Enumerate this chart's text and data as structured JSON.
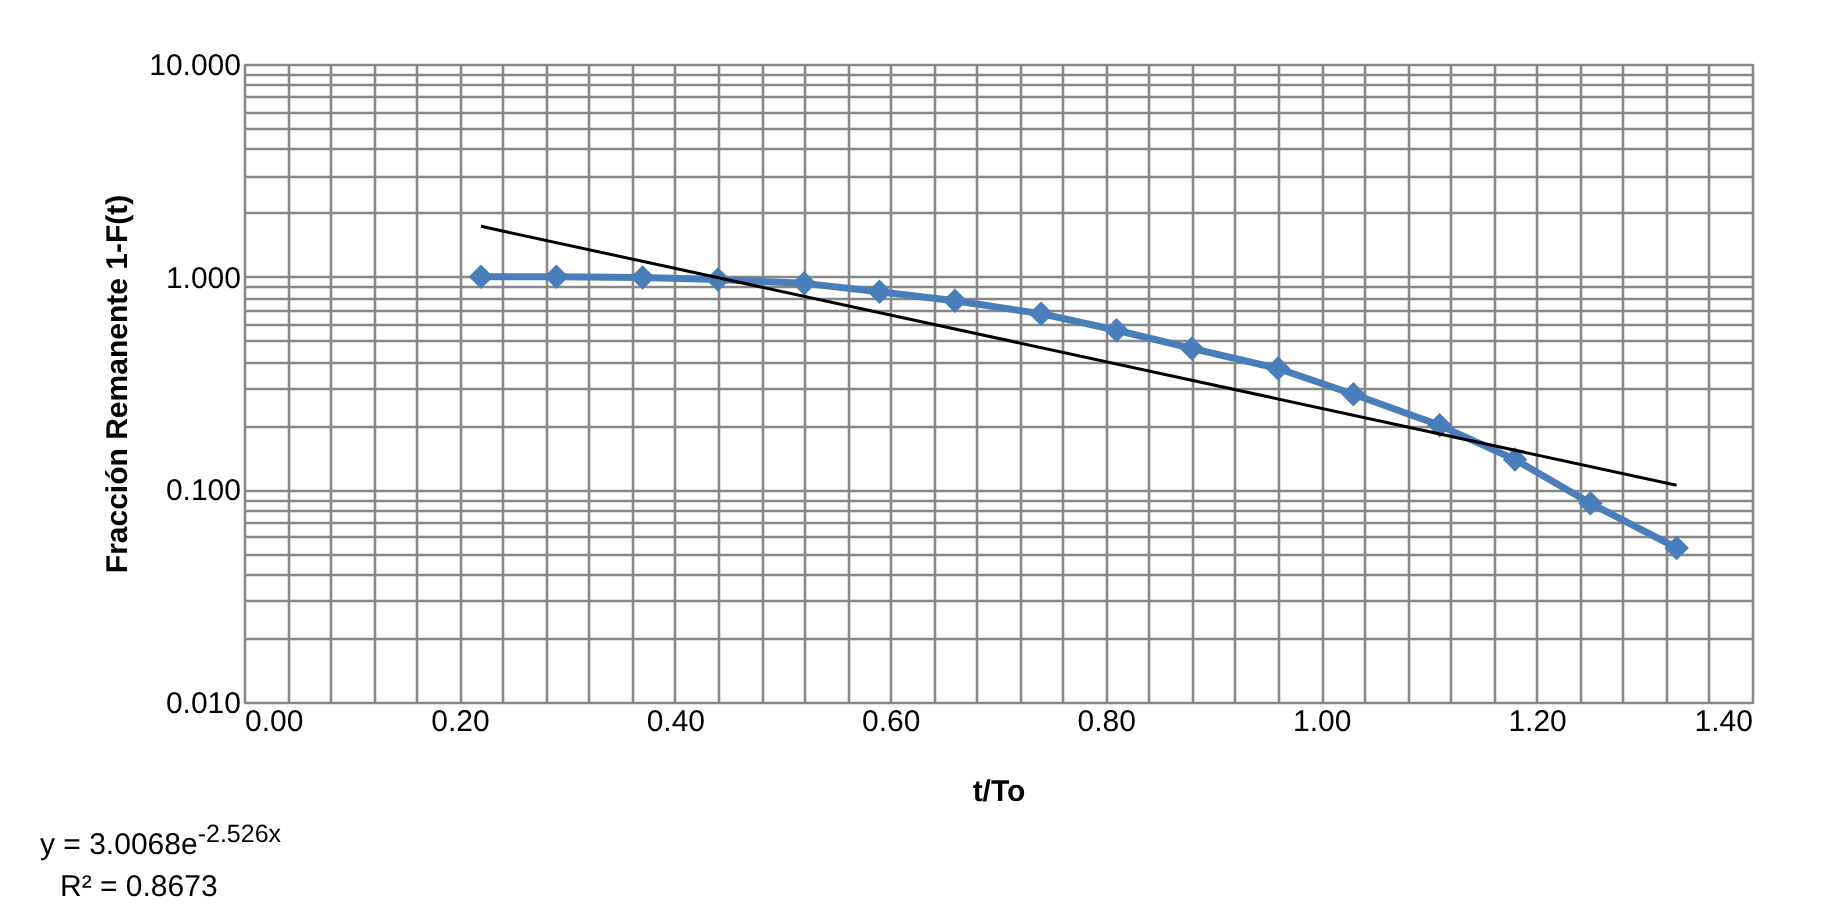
{
  "chart_data": {
    "type": "line",
    "xlabel": "t/To",
    "ylabel": "Fracción Remanente 1-F(t)",
    "log": "y",
    "grid": true,
    "marker": "diamond",
    "line_style": "solid",
    "xlim": [
      0,
      1.4
    ],
    "ylim": [
      0.01,
      10
    ],
    "xticks": [
      {
        "value": 0,
        "label": "0.00"
      },
      {
        "value": 0.04,
        "label": null
      },
      {
        "value": 0.08,
        "label": null
      },
      {
        "value": 0.12,
        "label": null
      },
      {
        "value": 0.16,
        "label": null
      },
      {
        "value": 0.2,
        "label": "0.20"
      },
      {
        "value": 0.24,
        "label": null
      },
      {
        "value": 0.28,
        "label": null
      },
      {
        "value": 0.32,
        "label": null
      },
      {
        "value": 0.36,
        "label": null
      },
      {
        "value": 0.4,
        "label": "0.40"
      },
      {
        "value": 0.44,
        "label": null
      },
      {
        "value": 0.48,
        "label": null
      },
      {
        "value": 0.52,
        "label": null
      },
      {
        "value": 0.56,
        "label": null
      },
      {
        "value": 0.6,
        "label": "0.60"
      },
      {
        "value": 0.64,
        "label": null
      },
      {
        "value": 0.68,
        "label": null
      },
      {
        "value": 0.72,
        "label": null
      },
      {
        "value": 0.76,
        "label": null
      },
      {
        "value": 0.8,
        "label": "0.80"
      },
      {
        "value": 0.84,
        "label": null
      },
      {
        "value": 0.88,
        "label": null
      },
      {
        "value": 0.92,
        "label": null
      },
      {
        "value": 0.96,
        "label": null
      },
      {
        "value": 1.0,
        "label": "1.00"
      },
      {
        "value": 1.04,
        "label": null
      },
      {
        "value": 1.08,
        "label": null
      },
      {
        "value": 1.12,
        "label": null
      },
      {
        "value": 1.16,
        "label": null
      },
      {
        "value": 1.2,
        "label": "1.20"
      },
      {
        "value": 1.24,
        "label": null
      },
      {
        "value": 1.28,
        "label": null
      },
      {
        "value": 1.32,
        "label": null
      },
      {
        "value": 1.36,
        "label": null
      },
      {
        "value": 1.4,
        "label": "1.40"
      }
    ],
    "yticks": [
      {
        "value": 0.01,
        "label": "0.010"
      },
      {
        "value": 0.02,
        "label": null
      },
      {
        "value": 0.03,
        "label": null
      },
      {
        "value": 0.04,
        "label": null
      },
      {
        "value": 0.05,
        "label": null
      },
      {
        "value": 0.06,
        "label": null
      },
      {
        "value": 0.07,
        "label": null
      },
      {
        "value": 0.08,
        "label": null
      },
      {
        "value": 0.09,
        "label": null
      },
      {
        "value": 0.1,
        "label": "0.100"
      },
      {
        "value": 0.2,
        "label": null
      },
      {
        "value": 0.3,
        "label": null
      },
      {
        "value": 0.4,
        "label": null
      },
      {
        "value": 0.5,
        "label": null
      },
      {
        "value": 0.6,
        "label": null
      },
      {
        "value": 0.7,
        "label": null
      },
      {
        "value": 0.8,
        "label": null
      },
      {
        "value": 0.9,
        "label": null
      },
      {
        "value": 1,
        "label": "1.000"
      },
      {
        "value": 2,
        "label": null
      },
      {
        "value": 3,
        "label": null
      },
      {
        "value": 4,
        "label": null
      },
      {
        "value": 5,
        "label": null
      },
      {
        "value": 6,
        "label": null
      },
      {
        "value": 7,
        "label": null
      },
      {
        "value": 8,
        "label": null
      },
      {
        "value": 9,
        "label": null
      },
      {
        "value": 10,
        "label": "10.000"
      }
    ],
    "series": [
      {
        "color": "#4a7ebb",
        "x": [
          0.22,
          0.29,
          0.37,
          0.44,
          0.52,
          0.59,
          0.66,
          0.74,
          0.81,
          0.88,
          0.96,
          1.03,
          1.11,
          1.18,
          1.25,
          1.33
        ],
        "values": [
          1.0,
          1.0,
          0.99,
          0.97,
          0.93,
          0.85,
          0.77,
          0.67,
          0.56,
          0.46,
          0.37,
          0.28,
          0.2,
          0.138,
          0.086,
          0.053
        ]
      },
      {
        "color": "#000000",
        "marker": "none",
        "x": [
          0.22,
          1.33
        ],
        "values": [
          1.725,
          0.1045
        ]
      }
    ],
    "annotations": [
      "y = 3.0068e$^{-2.526x}$",
      "R² = 0.8673"
    ]
  }
}
